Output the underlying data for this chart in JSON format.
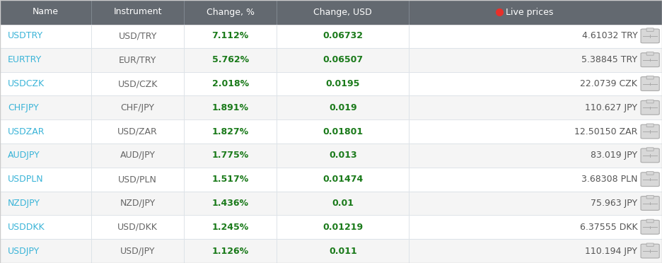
{
  "columns": [
    "Name",
    "Instrument",
    "Change, %",
    "Change, USD",
    "Live prices"
  ],
  "header_bg": "#636970",
  "header_text_color": "#ffffff",
  "row_bg_white": "#ffffff",
  "row_bg_gray": "#f5f5f5",
  "separator_color": "#dde3e8",
  "name_color": "#3ab4d8",
  "change_color": "#1a7a1a",
  "instrument_color": "#666666",
  "live_price_color": "#555555",
  "rows": [
    [
      "USDTRY",
      "USD/TRY",
      "7.112%",
      "0.06732",
      "4.61032 TRY"
    ],
    [
      "EURTRY",
      "EUR/TRY",
      "5.762%",
      "0.06507",
      "5.38845 TRY"
    ],
    [
      "USDCZK",
      "USD/CZK",
      "2.018%",
      "0.0195",
      "22.0739 CZK"
    ],
    [
      "CHFJPY",
      "CHF/JPY",
      "1.891%",
      "0.019",
      "110.627 JPY"
    ],
    [
      "USDZAR",
      "USD/ZAR",
      "1.827%",
      "0.01801",
      "12.50150 ZAR"
    ],
    [
      "AUDJPY",
      "AUD/JPY",
      "1.775%",
      "0.013",
      "83.019 JPY"
    ],
    [
      "USDPLN",
      "USD/PLN",
      "1.517%",
      "0.01474",
      "3.68308 PLN"
    ],
    [
      "NZDJPY",
      "NZD/JPY",
      "1.436%",
      "0.01",
      "75.963 JPY"
    ],
    [
      "USDDKK",
      "USD/DKK",
      "1.245%",
      "0.01219",
      "6.37555 DKK"
    ],
    [
      "USDJPY",
      "USD/JPY",
      "1.126%",
      "0.011",
      "110.194 JPY"
    ]
  ],
  "live_dot_color": "#e8302a",
  "col_xstarts": [
    0.0,
    0.138,
    0.278,
    0.418,
    0.618
  ],
  "col_xends": [
    0.138,
    0.278,
    0.418,
    0.618,
    1.0
  ],
  "figsize": [
    9.36,
    3.72
  ],
  "dpi": 100
}
